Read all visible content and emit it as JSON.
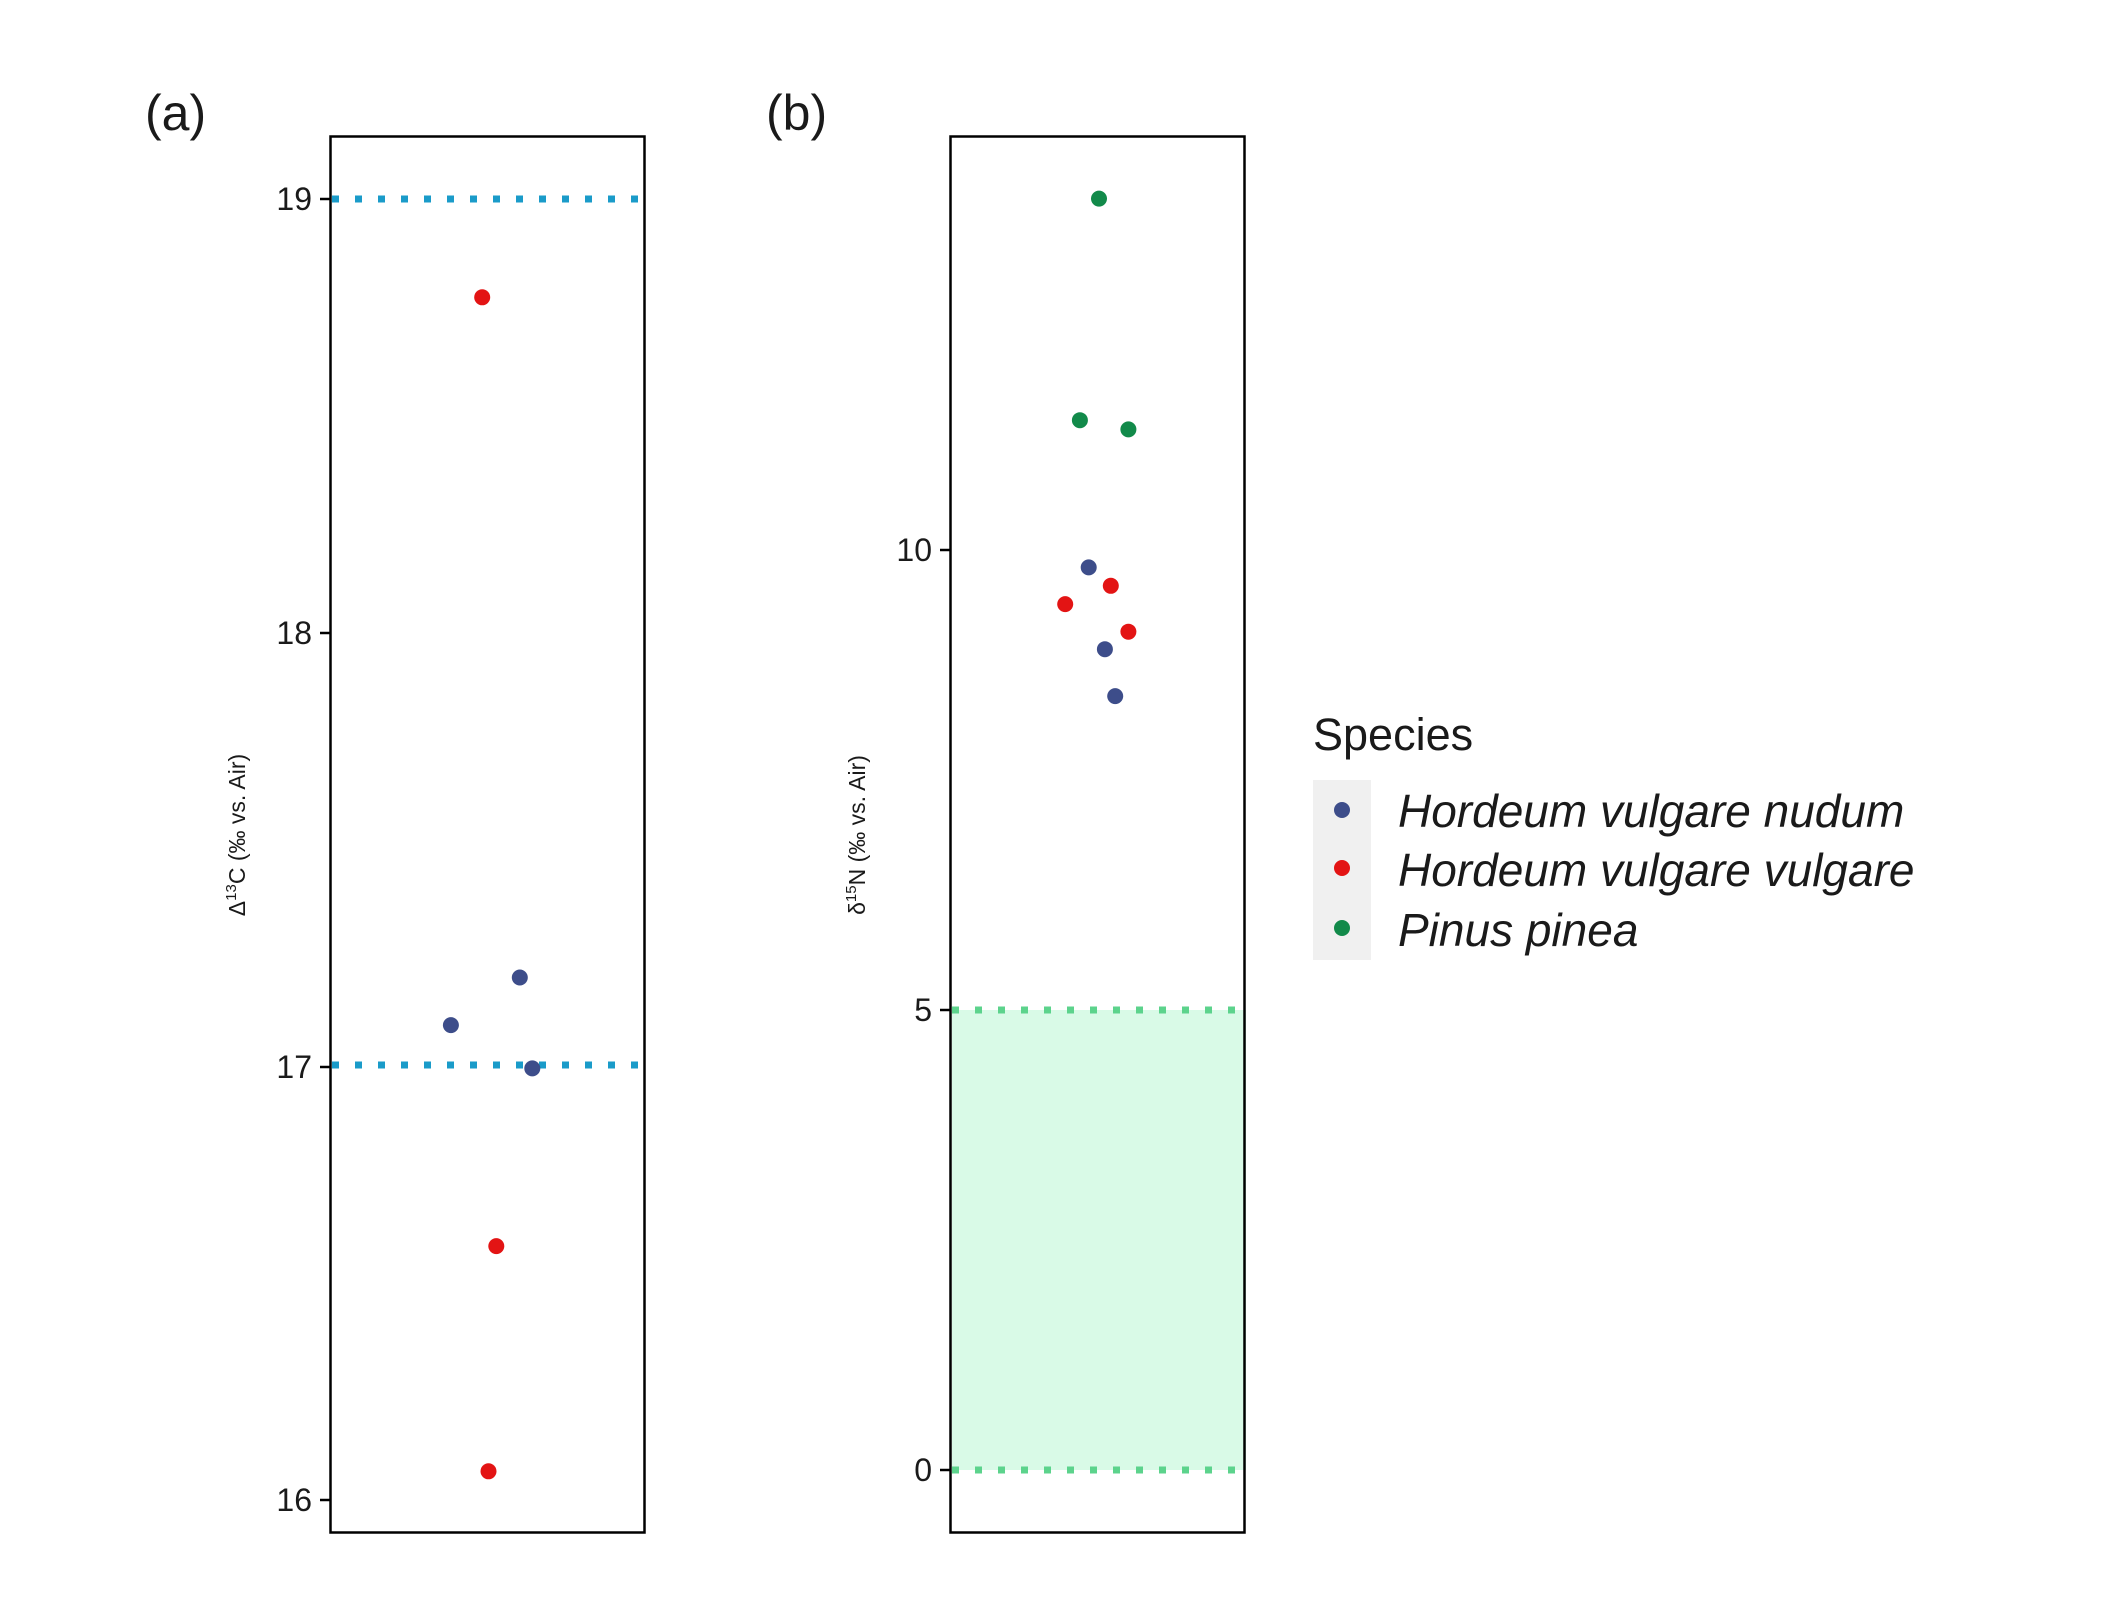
{
  "colors": {
    "nudum": "#3d4d8a",
    "vulgare": "#e31414",
    "pinus": "#128a4a",
    "threshold_line_a": "#1a9bc9",
    "threshold_line_b": "#5cd38c",
    "range_fill_b": "#d9fae7",
    "legend_key_bg": "#f0f0f0"
  },
  "legend": {
    "title": "Species",
    "items": [
      {
        "label": "Hordeum vulgare nudum",
        "color": "#3d4d8a"
      },
      {
        "label": "Hordeum vulgare vulgare",
        "color": "#e31414"
      },
      {
        "label": "Pinus pinea",
        "color": "#128a4a"
      }
    ]
  },
  "chart_data": [
    {
      "panel_label": "(a)",
      "type": "scatter",
      "ylabel_symbol": "Δ",
      "ylabel_superscript": "13",
      "ylabel_rest": "C (‰ vs. Air)",
      "ylim": [
        15.93,
        19.15
      ],
      "yticks": [
        16,
        17,
        18,
        19
      ],
      "reference_lines": [
        17,
        19
      ],
      "series": [
        {
          "name": "Hordeum vulgare nudum",
          "color": "#3d4d8a",
          "x": [
            -0.24,
            0.2,
            0.28
          ],
          "y": [
            17.1,
            17.21,
            17.0
          ]
        },
        {
          "name": "Hordeum vulgare vulgare",
          "color": "#e31414",
          "x": [
            -0.04,
            0.05,
            0.0
          ],
          "y": [
            18.78,
            16.59,
            16.07
          ]
        }
      ]
    },
    {
      "panel_label": "(b)",
      "type": "scatter",
      "ylabel_symbol": "δ",
      "ylabel_superscript": "15",
      "ylabel_rest": "N (‰ vs. Air)",
      "ylim": [
        -0.67,
        14.5
      ],
      "yticks": [
        0,
        5,
        10
      ],
      "reference_band": [
        0,
        5
      ],
      "series": [
        {
          "name": "Hordeum vulgare nudum",
          "color": "#3d4d8a",
          "x": [
            -0.07,
            0.04,
            0.11
          ],
          "y": [
            9.82,
            8.93,
            8.42
          ]
        },
        {
          "name": "Hordeum vulgare vulgare",
          "color": "#e31414",
          "x": [
            -0.23,
            0.08,
            0.2
          ],
          "y": [
            9.42,
            9.62,
            9.12
          ]
        },
        {
          "name": "Pinus pinea",
          "color": "#128a4a",
          "x": [
            -0.13,
            0.2,
            0.0
          ],
          "y": [
            11.42,
            11.32,
            13.83
          ]
        }
      ]
    }
  ]
}
